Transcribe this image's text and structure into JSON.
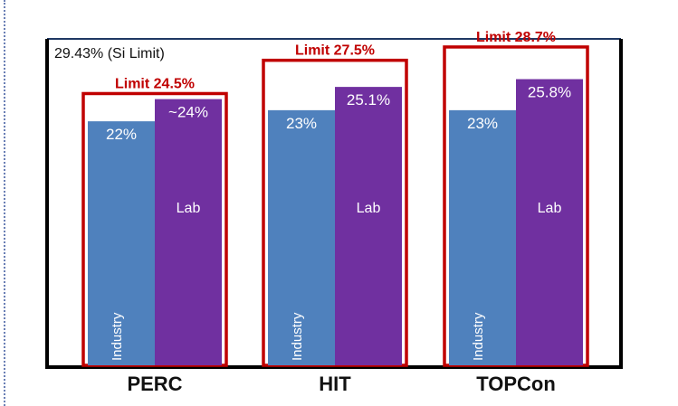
{
  "chart_data": {
    "type": "bar",
    "si_limit_label": "29.43% (Si Limit)",
    "si_limit_value": 29.43,
    "ylim": [
      0,
      29.43
    ],
    "categories": [
      "PERC",
      "HIT",
      "TOPCon"
    ],
    "series": [
      {
        "name": "Industry",
        "color": "#4f81bd",
        "values": [
          22,
          23,
          23
        ],
        "value_labels": [
          "22%",
          "23%",
          "23%"
        ]
      },
      {
        "name": "Lab",
        "color": "#7030a0",
        "values": [
          24,
          25.1,
          25.8
        ],
        "value_labels": [
          "~24%",
          "25.1%",
          "25.8%"
        ]
      }
    ],
    "limits": [
      {
        "label": "Limit 24.5%",
        "value": 24.5
      },
      {
        "label": "Limit 27.5%",
        "value": 27.5
      },
      {
        "label": "Limit 28.7%",
        "value": 28.7
      }
    ],
    "colors": {
      "limit_box": "#c00000",
      "frame": "#000000",
      "top_line": "#1f3864"
    },
    "grid": false,
    "legend": "none"
  }
}
